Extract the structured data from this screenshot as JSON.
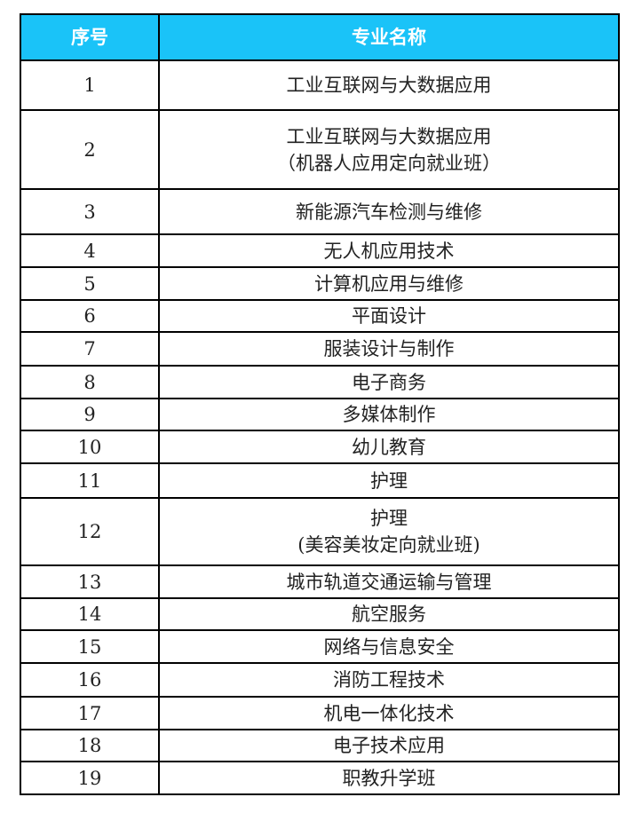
{
  "header_color": "#1ac3f8",
  "headers": [
    "序号",
    "专业名称"
  ],
  "rows": [
    {
      "no": "1",
      "name": [
        "工业互联网与大数据应用"
      ]
    },
    {
      "no": "2",
      "name": [
        "工业互联网与大数据应用",
        "（机器人应用定向就业班）"
      ]
    },
    {
      "no": "3",
      "name": [
        "新能源汽车检测与维修"
      ]
    },
    {
      "no": "4",
      "name": [
        "无人机应用技术"
      ]
    },
    {
      "no": "5",
      "name": [
        "计算机应用与维修"
      ]
    },
    {
      "no": "6",
      "name": [
        "平面设计"
      ]
    },
    {
      "no": "7",
      "name": [
        "服装设计与制作"
      ]
    },
    {
      "no": "8",
      "name": [
        "电子商务"
      ]
    },
    {
      "no": "9",
      "name": [
        "多媒体制作"
      ]
    },
    {
      "no": "10",
      "name": [
        "幼儿教育"
      ]
    },
    {
      "no": "11",
      "name": [
        "护理"
      ]
    },
    {
      "no": "12",
      "name": [
        "护理",
        "(美容美妆定向就业班)"
      ]
    },
    {
      "no": "13",
      "name": [
        "城市轨道交通运输与管理"
      ]
    },
    {
      "no": "14",
      "name": [
        "航空服务"
      ]
    },
    {
      "no": "15",
      "name": [
        "网络与信息安全"
      ]
    },
    {
      "no": "16",
      "name": [
        "消防工程技术"
      ]
    },
    {
      "no": "17",
      "name": [
        "机电一体化技术"
      ]
    },
    {
      "no": "18",
      "name": [
        "电子技术应用"
      ]
    },
    {
      "no": "19",
      "name": [
        "职教升学班"
      ]
    }
  ]
}
